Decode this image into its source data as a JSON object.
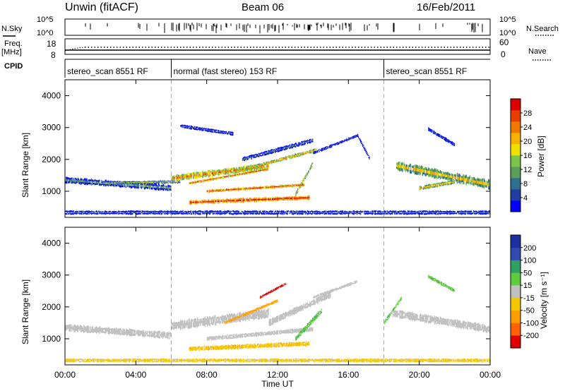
{
  "header": {
    "station": "Unwin (fitACF)",
    "beam": "Beam 06",
    "date": "16/Feb/2011"
  },
  "aux": {
    "nsky_label": "N.Sky",
    "nsky_ticks": [
      "10^5",
      "10^0"
    ],
    "nsearch_label": "N.Search",
    "nsearch_ticks": [
      "10^5",
      "10^0"
    ],
    "freq_label": "Freq.",
    "freq_unit": "[MHz]",
    "freq_ticks": [
      "18",
      "8"
    ],
    "nave_label": "Nave",
    "nave_ticks": [
      "60",
      "0"
    ],
    "cpid_label": "CPID",
    "cpid_segments": [
      {
        "label": "stereo_scan 8551 RF",
        "start_hr": 0,
        "end_hr": 6
      },
      {
        "label": "normal (fast stereo) 153 RF",
        "start_hr": 6,
        "end_hr": 18
      },
      {
        "label": "stereo_scan 8551 RF",
        "start_hr": 18,
        "end_hr": 24
      }
    ]
  },
  "axes": {
    "ylabel": "Slant Range [km]",
    "yticks": [
      "4000",
      "3000",
      "2000",
      "1000"
    ],
    "xticks": [
      "00:00",
      "04:00",
      "08:00",
      "12:00",
      "16:00",
      "20:00",
      "00:00"
    ],
    "xlabel": "Time UT"
  },
  "colorbars": {
    "power": {
      "label": "Power [dB]",
      "ticks": [
        "28",
        "24",
        "20",
        "16",
        "12",
        "8",
        "4"
      ]
    },
    "velocity": {
      "label": "Velocity [m s⁻¹]",
      "ticks": [
        "200",
        "100",
        "50",
        "15",
        "-15",
        "-50",
        "-100",
        "-200"
      ]
    }
  },
  "chart_data": [
    {
      "type": "heatmap",
      "title": "Power [dB]",
      "x_range_hr": [
        0,
        24
      ],
      "y_range_km": [
        180,
        4500
      ],
      "z_range": [
        0,
        30
      ],
      "structures": [
        {
          "t0": 0,
          "t1": 6,
          "r0": 1350,
          "r1": 1100,
          "w": 170,
          "z": 10
        },
        {
          "t0": 2,
          "t1": 6.5,
          "r0": 1250,
          "r1": 1300,
          "w": 90,
          "z": 14
        },
        {
          "t0": 6,
          "t1": 11.5,
          "r0": 1400,
          "r1": 1800,
          "w": 180,
          "z": 22
        },
        {
          "t0": 7,
          "t1": 11.5,
          "r0": 1250,
          "r1": 1700,
          "w": 80,
          "z": 25
        },
        {
          "t0": 8,
          "t1": 13.5,
          "r0": 1000,
          "r1": 1200,
          "w": 90,
          "z": 26
        },
        {
          "t0": 9.5,
          "t1": 14.2,
          "r0": 1600,
          "r1": 2300,
          "w": 100,
          "z": 20
        },
        {
          "t0": 7,
          "t1": 13.8,
          "r0": 650,
          "r1": 800,
          "w": 120,
          "z": 28
        },
        {
          "t0": 13,
          "t1": 14,
          "r0": 900,
          "r1": 1900,
          "w": 100,
          "z": 18
        },
        {
          "t0": 10,
          "t1": 14,
          "r0": 2000,
          "r1": 2600,
          "w": 120,
          "z": 8
        },
        {
          "t0": 14,
          "t1": 16.5,
          "r0": 2200,
          "r1": 2750,
          "w": 80,
          "z": 5
        },
        {
          "t0": 16.5,
          "t1": 17.2,
          "r0": 2750,
          "r1": 2000,
          "w": 80,
          "z": 5
        },
        {
          "t0": 6.5,
          "t1": 9.5,
          "r0": 3050,
          "r1": 2800,
          "w": 100,
          "z": 6
        },
        {
          "t0": 18.7,
          "t1": 24,
          "r0": 1800,
          "r1": 1200,
          "w": 260,
          "z": 18
        },
        {
          "t0": 20,
          "t1": 22,
          "r0": 1100,
          "r1": 1300,
          "w": 120,
          "z": 20
        },
        {
          "t0": 20.5,
          "t1": 22,
          "r0": 2950,
          "r1": 2450,
          "w": 100,
          "z": 5
        },
        {
          "t0": 0,
          "t1": 24,
          "r0": 330,
          "r1": 330,
          "w": 110,
          "z": 8
        }
      ]
    },
    {
      "type": "heatmap",
      "title": "Velocity [m s⁻¹]",
      "x_range_hr": [
        0,
        24
      ],
      "y_range_km": [
        180,
        4500
      ],
      "z_range": [
        -250,
        250
      ],
      "structures": [
        {
          "t0": 0,
          "t1": 6,
          "r0": 1350,
          "r1": 1100,
          "w": 190,
          "v": 0
        },
        {
          "t0": 6,
          "t1": 11.5,
          "r0": 1400,
          "r1": 1800,
          "w": 260,
          "v": 0
        },
        {
          "t0": 8,
          "t1": 14,
          "r0": 1000,
          "r1": 1300,
          "w": 120,
          "v": 0
        },
        {
          "t0": 11.5,
          "t1": 15,
          "r0": 1500,
          "r1": 2400,
          "w": 180,
          "v": 0
        },
        {
          "t0": 13,
          "t1": 14.5,
          "r0": 1000,
          "r1": 1900,
          "w": 140,
          "v": 40
        },
        {
          "t0": 7,
          "t1": 13.8,
          "r0": 680,
          "r1": 850,
          "w": 130,
          "v": -40
        },
        {
          "t0": 9,
          "t1": 12,
          "r0": 1500,
          "r1": 2200,
          "w": 80,
          "v": -70
        },
        {
          "t0": 11,
          "t1": 12.5,
          "r0": 2300,
          "r1": 2750,
          "w": 70,
          "v": -220
        },
        {
          "t0": 14,
          "t1": 16.5,
          "r0": 2300,
          "r1": 2800,
          "w": 80,
          "v": 0
        },
        {
          "t0": 18.5,
          "t1": 24,
          "r0": 1800,
          "r1": 1300,
          "w": 220,
          "v": 0
        },
        {
          "t0": 18,
          "t1": 19,
          "r0": 1500,
          "r1": 2300,
          "w": 100,
          "v": 40
        },
        {
          "t0": 20.5,
          "t1": 22,
          "r0": 2950,
          "r1": 2500,
          "w": 100,
          "v": 40
        },
        {
          "t0": 0,
          "t1": 24,
          "r0": 320,
          "r1": 320,
          "w": 100,
          "v": -25
        }
      ]
    }
  ],
  "colors": {
    "power_scale": [
      "#0000ff",
      "#1e3f9f",
      "#2f6f8f",
      "#5a9e5a",
      "#7bc44a",
      "#f0e000",
      "#f5b000",
      "#f07800",
      "#e83c00",
      "#dd0000"
    ],
    "velocity_scale": [
      "#e00000",
      "#ff6000",
      "#ffa000",
      "#f4c800",
      "#c0c0c0",
      "#5fcc3c",
      "#30a060",
      "#304ab0",
      "#1c2fa0"
    ],
    "sky_line": "#000000"
  }
}
